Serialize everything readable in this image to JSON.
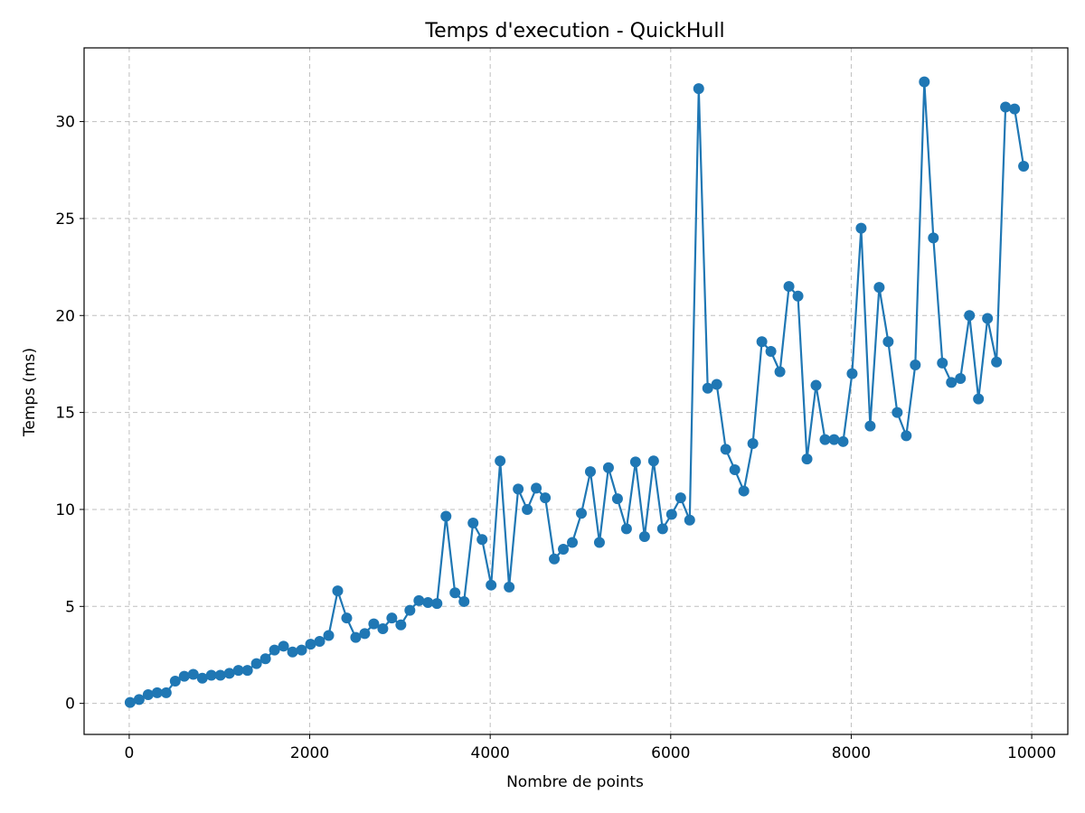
{
  "chart_data": {
    "type": "line",
    "title": "Temps d'execution - QuickHull",
    "xlabel": "Nombre de points",
    "ylabel": "Temps (ms)",
    "xlim": [
      -500,
      10400
    ],
    "ylim": [
      -1.6,
      33.8
    ],
    "xticks": [
      0,
      2000,
      4000,
      6000,
      8000,
      10000
    ],
    "yticks": [
      0,
      5,
      10,
      15,
      20,
      25,
      30
    ],
    "xtick_labels": [
      "0",
      "2000",
      "4000",
      "6000",
      "8000",
      "10000"
    ],
    "ytick_labels": [
      "0",
      "5",
      "10",
      "15",
      "20",
      "25",
      "30"
    ],
    "grid": true,
    "marker": "circle",
    "color": "#1f77b4",
    "series": [
      {
        "x": [
          10,
          110,
          210,
          310,
          410,
          510,
          610,
          710,
          810,
          910,
          1010,
          1110,
          1210,
          1310,
          1410,
          1510,
          1610,
          1710,
          1810,
          1910,
          2010,
          2110,
          2210,
          2310,
          2410,
          2510,
          2610,
          2710,
          2810,
          2910,
          3010,
          3110,
          3210,
          3310,
          3410,
          3510,
          3610,
          3710,
          3810,
          3910,
          4010,
          4110,
          4210,
          4310,
          4410,
          4510,
          4610,
          4710,
          4810,
          4910,
          5010,
          5110,
          5210,
          5310,
          5410,
          5510,
          5610,
          5710,
          5810,
          5910,
          6010,
          6110,
          6210,
          6310,
          6410,
          6510,
          6610,
          6710,
          6810,
          6910,
          7010,
          7110,
          7210,
          7310,
          7410,
          7510,
          7610,
          7710,
          7810,
          7910,
          8010,
          8110,
          8210,
          8310,
          8410,
          8510,
          8610,
          8710,
          8810,
          8910,
          9010,
          9110,
          9210,
          9310,
          9410,
          9510,
          9610,
          9710,
          9810,
          9910
        ],
        "values": [
          0.05,
          0.2,
          0.45,
          0.55,
          0.55,
          1.15,
          1.4,
          1.5,
          1.3,
          1.45,
          1.45,
          1.55,
          1.7,
          1.7,
          2.05,
          2.3,
          2.75,
          2.95,
          2.65,
          2.75,
          3.05,
          3.2,
          3.5,
          5.8,
          4.4,
          3.4,
          3.6,
          4.1,
          3.85,
          4.4,
          4.05,
          4.8,
          5.3,
          5.2,
          5.15,
          9.65,
          5.7,
          5.25,
          9.3,
          8.45,
          6.1,
          12.5,
          6.0,
          11.05,
          10.0,
          11.1,
          10.6,
          7.45,
          7.95,
          8.3,
          9.8,
          11.95,
          8.3,
          12.15,
          10.55,
          9.0,
          12.45,
          8.6,
          12.5,
          9.0,
          9.75,
          10.6,
          9.45,
          31.7,
          16.25,
          16.45,
          13.1,
          12.05,
          10.95,
          13.4,
          18.65,
          18.15,
          17.1,
          21.5,
          21.0,
          12.6,
          16.4,
          13.6,
          13.6,
          13.5,
          17.0,
          24.5,
          14.3,
          21.45,
          18.65,
          15.0,
          13.8,
          17.45,
          32.05,
          24.0,
          17.55,
          16.55,
          16.75,
          20.0,
          15.7,
          19.85,
          17.6,
          30.75,
          30.65,
          27.7
        ]
      }
    ]
  }
}
